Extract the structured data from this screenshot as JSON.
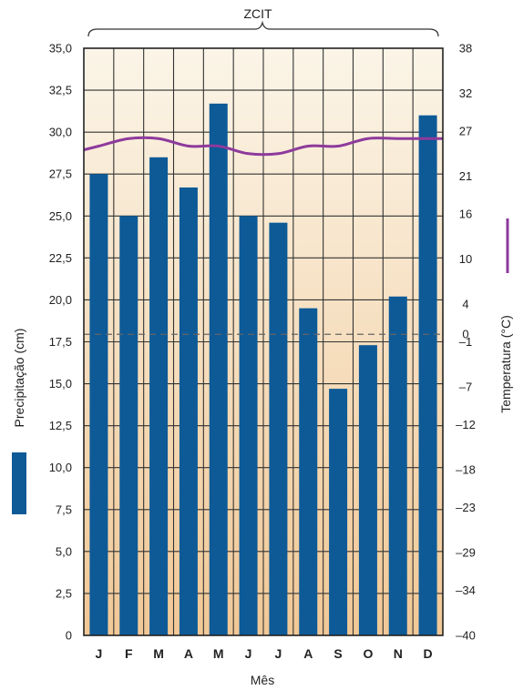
{
  "chart_data": {
    "type": "bar",
    "annotation": "ZCIT",
    "xlabel": "Mês",
    "ylabel_left": "Precipitação (cm)",
    "ylabel_right": "Temperatura (°C)",
    "categories": [
      "J",
      "F",
      "M",
      "A",
      "M",
      "J",
      "J",
      "A",
      "S",
      "O",
      "N",
      "D"
    ],
    "left_axis": {
      "ylim": [
        0,
        35
      ],
      "ticks": [
        "0",
        "2,5",
        "5,0",
        "7,5",
        "10,0",
        "12,5",
        "15,0",
        "17,5",
        "20,0",
        "22,5",
        "25,0",
        "27,5",
        "30,0",
        "32,5",
        "35,0"
      ]
    },
    "right_axis": {
      "ylim": [
        -40,
        38
      ],
      "ticks": [
        "–40",
        "–34",
        "–29",
        "–23",
        "–18",
        "–12",
        "–7",
        "–1",
        "0",
        "4",
        "10",
        "16",
        "21",
        "27",
        "32",
        "38"
      ]
    },
    "series": [
      {
        "values": [
          27.5,
          25.0,
          28.5,
          26.7,
          31.7,
          25.0,
          24.6,
          19.5,
          14.7,
          17.3,
          20.2,
          31.0
        ],
        "color": "#0d5a97",
        "axis": "left"
      },
      {
        "values": [
          25.0,
          26.0,
          26.0,
          25.0,
          25.0,
          24.0,
          24.0,
          25.0,
          25.0,
          26.0,
          26.0,
          26.0
        ],
        "color": "#8e3a9c",
        "axis": "right"
      }
    ],
    "reference_line": {
      "value": 0,
      "axis": "right",
      "style": "dashed"
    },
    "grid": true,
    "colors": {
      "background_top": "#fbf5e8",
      "background_bottom": "#f1c896",
      "grid": "#333333"
    }
  }
}
